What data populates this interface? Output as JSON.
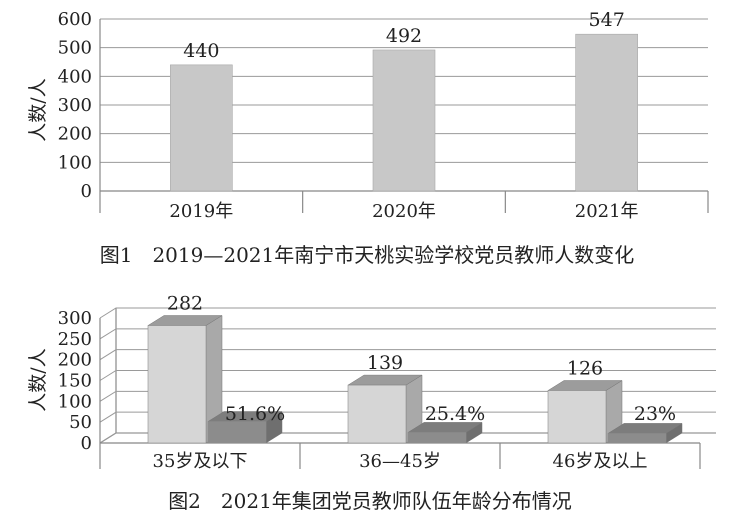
{
  "chart_data": [
    {
      "type": "bar",
      "caption": "图1　2019—2021年南宁市天桃实验学校党员教师人数变化",
      "ylabel": "人数/人",
      "categories": [
        "2019年",
        "2020年",
        "2021年"
      ],
      "values": [
        440,
        492,
        547
      ],
      "value_labels": [
        "440",
        "492",
        "547"
      ],
      "ylim": [
        0,
        600
      ],
      "yticks": [
        "0",
        "100",
        "200",
        "300",
        "400",
        "500",
        "600"
      ],
      "grid": true,
      "bar_color": "#c8c8c8"
    },
    {
      "type": "bar",
      "caption": "图2　2021年集团党员教师队伍年龄分布情况",
      "ylabel": "人数/人",
      "categories": [
        "35岁及以下",
        "36—45岁",
        "46岁及以上"
      ],
      "series": [
        {
          "values": [
            282,
            139,
            126
          ],
          "labels": [
            "282",
            "139",
            "126"
          ]
        },
        {
          "values": [
            51.6,
            25.4,
            23
          ],
          "labels": [
            "51.6%",
            "25.4%",
            "23%"
          ]
        }
      ],
      "ylim": [
        0,
        300
      ],
      "yticks": [
        "0",
        "50",
        "100",
        "150",
        "200",
        "250",
        "300"
      ],
      "grid": true,
      "style": "3d",
      "bar_color": "#d6d6d6",
      "percent_bar_color": "#8c8c8c"
    }
  ]
}
